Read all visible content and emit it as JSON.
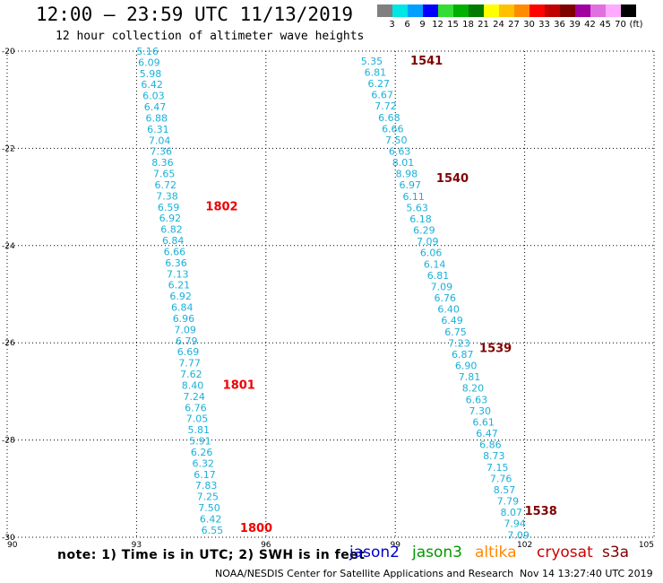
{
  "header": {
    "title": "12:00 – 23:59 UTC 11/13/2019",
    "subtitle": "12 hour collection of altimeter wave heights"
  },
  "color_scale": {
    "unit": "(ft)",
    "bins": [
      {
        "label": "3",
        "color": "#808080"
      },
      {
        "label": "6",
        "color": "#00e5e5"
      },
      {
        "label": "9",
        "color": "#00a0ff"
      },
      {
        "label": "12",
        "color": "#0000ff"
      },
      {
        "label": "15",
        "color": "#33dd33"
      },
      {
        "label": "18",
        "color": "#00b000"
      },
      {
        "label": "21",
        "color": "#007a00"
      },
      {
        "label": "24",
        "color": "#ffff00"
      },
      {
        "label": "27",
        "color": "#ffc000"
      },
      {
        "label": "30",
        "color": "#ff8c00"
      },
      {
        "label": "33",
        "color": "#ff0000"
      },
      {
        "label": "36",
        "color": "#c00000"
      },
      {
        "label": "39",
        "color": "#800000"
      },
      {
        "label": "42",
        "color": "#a000a0"
      },
      {
        "label": "45",
        "color": "#e070e0"
      },
      {
        "label": "70",
        "color": "#ffaaff"
      },
      {
        "label": "",
        "color": "#000000"
      }
    ]
  },
  "note": "note:  1) Time is in UTC;  2) SWH is in feet",
  "satellites": [
    {
      "name": "jason2",
      "color": "#0000cc"
    },
    {
      "name": "jason3",
      "color": "#009900"
    },
    {
      "name": "altika",
      "color": "#ff8800"
    },
    {
      "name": "cryosat",
      "color": "#cc0000"
    },
    {
      "name": "s3a",
      "color": "#800000"
    }
  ],
  "footer": "NOAA/NESDIS Center for Satellite Applications and Research",
  "timestamp": "Nov 14 13:27:40 UTC 2019",
  "chart_data": {
    "type": "scatter",
    "xlim": [
      90,
      105
    ],
    "ylim": [
      -30,
      -20
    ],
    "x_ticks": [
      "90",
      "93",
      "96",
      "99",
      "102",
      "105"
    ],
    "y_ticks": [
      "-20",
      "-22",
      "-24",
      "-26",
      "-28",
      "-30"
    ],
    "grid": true,
    "track_a": {
      "color": "#1ab0d8",
      "start": [
        93.0,
        -20.0
      ],
      "end": [
        94.5,
        -29.85
      ],
      "values": [
        "5.16",
        "6.09",
        "5.98",
        "6.42",
        "6.03",
        "6.47",
        "6.88",
        "6.31",
        "7.04",
        "7.36",
        "8.36",
        "7.65",
        "6.72",
        "7.38",
        "6.59",
        "6.92",
        "6.82",
        "6.84",
        "6.66",
        "6.36",
        "7.13",
        "6.21",
        "6.92",
        "6.84",
        "6.96",
        "7.09",
        "6.79",
        "6.69",
        "7.77",
        "7.62",
        "8.40",
        "7.24",
        "6.76",
        "7.05",
        "5.81",
        "5.91",
        "6.26",
        "6.32",
        "6.17",
        "7.83",
        "7.25",
        "7.50",
        "6.42",
        "6.55"
      ]
    },
    "track_b": {
      "color": "#1ab0d8",
      "start": [
        98.2,
        -20.2
      ],
      "end": [
        101.6,
        -29.95
      ],
      "values": [
        "5.35",
        "6.81",
        "6.27",
        "6.67",
        "7.72",
        "6.68",
        "6.66",
        "7.50",
        "6.63",
        "8.01",
        "8.98",
        "6.97",
        "6.11",
        "5.63",
        "6.18",
        "6.29",
        "7.09",
        "6.06",
        "6.14",
        "6.81",
        "7.09",
        "6.76",
        "6.40",
        "6.49",
        "6.75",
        "7.23",
        "6.87",
        "6.90",
        "7.81",
        "8.20",
        "6.63",
        "7.30",
        "6.61",
        "6.47",
        "6.86",
        "8.73",
        "7.15",
        "7.76",
        "8.57",
        "7.79",
        "8.07",
        "7.94",
        "7.09"
      ]
    },
    "time_labels": [
      {
        "text": "1541",
        "x": 99.35,
        "y": -20.18,
        "color": "#800000"
      },
      {
        "text": "1540",
        "x": 99.95,
        "y": -22.6,
        "color": "#800000"
      },
      {
        "text": "1539",
        "x": 100.95,
        "y": -26.1,
        "color": "#800000"
      },
      {
        "text": "1538",
        "x": 102.0,
        "y": -29.45,
        "color": "#800000"
      },
      {
        "text": "1802",
        "x": 94.6,
        "y": -23.18,
        "color": "#ee0000"
      },
      {
        "text": "1801",
        "x": 95.0,
        "y": -26.85,
        "color": "#ee0000"
      },
      {
        "text": "1800",
        "x": 95.4,
        "y": -29.8,
        "color": "#ee0000"
      }
    ]
  }
}
